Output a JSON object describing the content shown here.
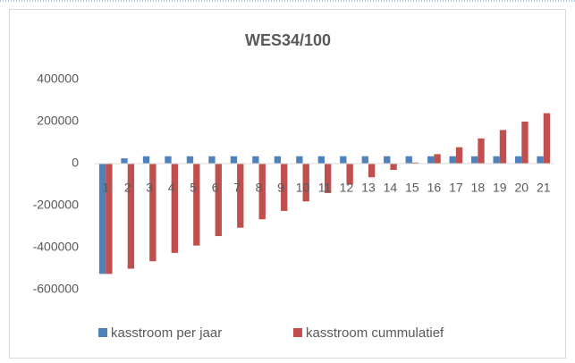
{
  "chart_data": {
    "type": "bar",
    "title": "WES34/100",
    "categories": [
      "1",
      "2",
      "3",
      "4",
      "5",
      "6",
      "7",
      "8",
      "9",
      "10",
      "11",
      "12",
      "13",
      "14",
      "15",
      "16",
      "17",
      "18",
      "19",
      "20",
      "21"
    ],
    "series": [
      {
        "name": "kasstroom per jaar",
        "color": "#4f81bd",
        "values": [
          -525000,
          25000,
          35000,
          35000,
          35000,
          35000,
          35000,
          35000,
          35000,
          35000,
          35000,
          35000,
          35000,
          35000,
          35000,
          35000,
          35000,
          35000,
          35000,
          35000,
          35000
        ]
      },
      {
        "name": "kasstroom cummulatief",
        "color": "#c0504d",
        "values": [
          -525000,
          -500000,
          -465000,
          -425000,
          -390000,
          -345000,
          -305000,
          -265000,
          -225000,
          -180000,
          -140000,
          -100000,
          -65000,
          -30000,
          5000,
          45000,
          78000,
          120000,
          160000,
          200000,
          240000
        ]
      }
    ],
    "ylim": [
      -600000,
      400000
    ],
    "yticks": [
      400000,
      200000,
      0,
      -200000,
      -400000,
      -600000
    ],
    "grid": false,
    "legend": "bottom"
  }
}
